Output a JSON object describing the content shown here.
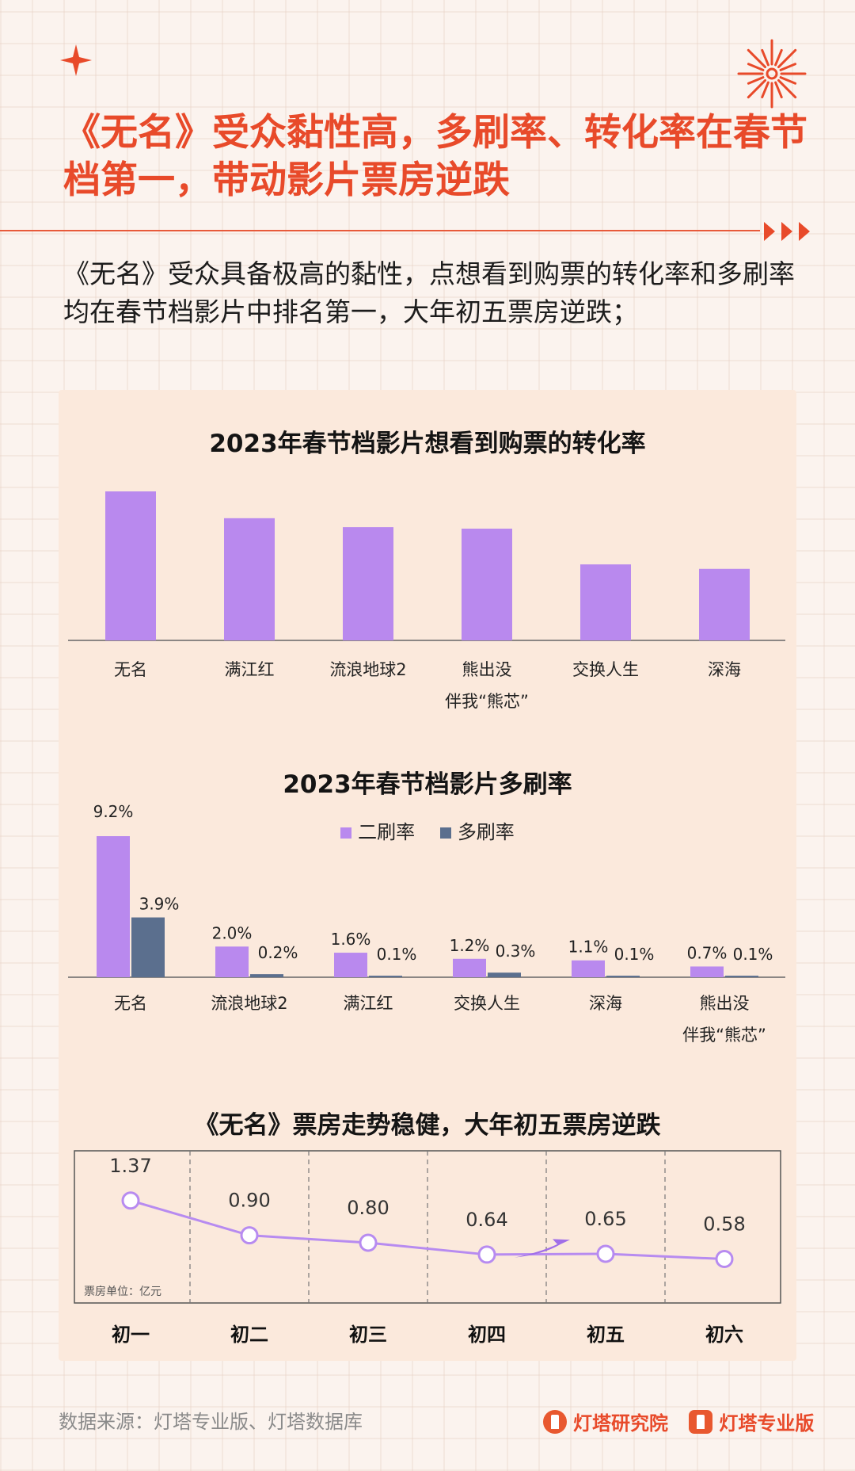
{
  "title": "《无名》受众黏性高，多刷率、转化率在春节档第一，带动影片票房逆跌",
  "intro": "《无名》受众具备极高的黏性，点想看到购票的转化率和多刷率均在春节档影片中排名第一，大年初五票房逆跌；",
  "source": "数据来源：灯塔专业版、灯塔数据库",
  "logos": [
    "灯塔研究院",
    "灯塔专业版"
  ],
  "colors": {
    "accent": "#e84a2a",
    "purple": "#b989ee",
    "slate": "#5b6f8e",
    "line": "#b78bf0"
  },
  "chart_data": [
    {
      "type": "bar",
      "title": "2023年春节档影片想看到购票的转化率",
      "categories": [
        [
          "无名"
        ],
        [
          "满江红"
        ],
        [
          "流浪地球2"
        ],
        [
          "熊出没",
          "伴我“熊芯”"
        ],
        [
          "交换人生"
        ],
        [
          "深海"
        ]
      ],
      "values": [
        100,
        82,
        76,
        75,
        51,
        48
      ]
    },
    {
      "type": "bar",
      "title": "2023年春节档影片多刷率",
      "categories": [
        [
          "无名"
        ],
        [
          "流浪地球2"
        ],
        [
          "满江红"
        ],
        [
          "交换人生"
        ],
        [
          "深海"
        ],
        [
          "熊出没",
          "伴我“熊芯”"
        ]
      ],
      "legend": "top-center",
      "series": [
        {
          "name": "二刷率",
          "values": [
            9.2,
            2.0,
            1.6,
            1.2,
            1.1,
            0.7
          ],
          "labels": [
            "9.2%",
            "2.0%",
            "1.6%",
            "1.2%",
            "1.1%",
            "0.7%"
          ]
        },
        {
          "name": "多刷率",
          "values": [
            3.9,
            0.2,
            0.1,
            0.3,
            0.1,
            0.1
          ],
          "labels": [
            "3.9%",
            "0.2%",
            "0.1%",
            "0.3%",
            "0.1%",
            "0.1%"
          ]
        }
      ]
    },
    {
      "type": "line",
      "title": "《无名》票房走势稳健，大年初五票房逆跌",
      "categories": [
        "初一",
        "初二",
        "初三",
        "初四",
        "初五",
        "初六"
      ],
      "values": [
        1.37,
        0.9,
        0.8,
        0.64,
        0.65,
        0.58
      ],
      "labels": [
        "1.37",
        "0.90",
        "0.80",
        "0.64",
        "0.65",
        "0.58"
      ],
      "unit_note": "票房单位：亿元"
    }
  ]
}
